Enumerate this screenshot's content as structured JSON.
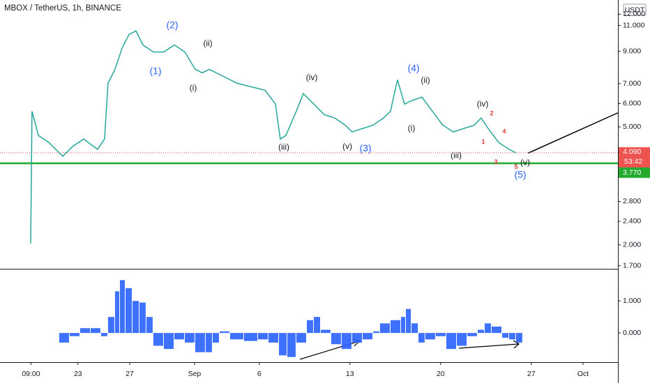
{
  "chart_data": {
    "type": "line",
    "title": "MBOX / TetherUS, 1h, BINANCE",
    "currency": "USDT",
    "log_scale": true,
    "color": "#26a69a",
    "x": [
      -12.65,
      -12.55,
      -12.06,
      -11.25,
      -10.18,
      -9.37,
      -8.56,
      -7.49,
      -6.95,
      -6.68,
      -6.14,
      -5.6,
      -5.06,
      -4.52,
      -3.98,
      -3.18,
      -2.37,
      -1.56,
      -0.75,
      0.05,
      0.59,
      1.13,
      2.21,
      3.28,
      4.36,
      5.44,
      6.25,
      6.62,
      7.05,
      7.86,
      8.4,
      9.21,
      10.02,
      10.82,
      11.63,
      12.17,
      12.98,
      13.79,
      14.59,
      15.13,
      15.67,
      16.21,
      16.75,
      17.56,
      18.36,
      19.17,
      19.98,
      20.79,
      21.59,
      22.13,
      22.67,
      23.48,
      24.29,
      24.82
    ],
    "values": [
      2.02,
      5.65,
      4.68,
      4.43,
      3.98,
      4.31,
      4.55,
      4.2,
      4.55,
      7.02,
      7.82,
      9.2,
      10.26,
      10.54,
      9.45,
      8.95,
      8.95,
      9.45,
      8.95,
      7.82,
      7.61,
      7.82,
      7.41,
      7.02,
      6.83,
      6.65,
      5.97,
      4.55,
      4.68,
      5.65,
      6.48,
      5.97,
      5.5,
      5.36,
      5.07,
      4.81,
      4.94,
      5.07,
      5.36,
      5.65,
      7.21,
      5.97,
      6.13,
      6.3,
      5.65,
      5.07,
      4.81,
      4.94,
      5.07,
      5.36,
      4.94,
      4.43,
      4.2,
      4.09
    ],
    "xlim": [
      -15.02,
      32.69
    ],
    "xticks": [
      {
        "value": -12.625,
        "label": "09:00"
      },
      {
        "value": -9,
        "label": "23"
      },
      {
        "value": -5,
        "label": "27"
      },
      {
        "value": 0,
        "label": "Sep"
      },
      {
        "value": 5,
        "label": "6"
      },
      {
        "value": 12,
        "label": "13"
      },
      {
        "value": 19,
        "label": "20"
      },
      {
        "value": 26,
        "label": "27"
      },
      {
        "value": 30,
        "label": "Oct"
      }
    ],
    "ylim": [
      1.67,
      13.4
    ],
    "yticks": [
      {
        "value": 12,
        "label": "12.000"
      },
      {
        "value": 11,
        "label": "11.000"
      },
      {
        "value": 9,
        "label": "9.000"
      },
      {
        "value": 7,
        "label": "7.000"
      },
      {
        "value": 6,
        "label": "6.000"
      },
      {
        "value": 5,
        "label": "5.000"
      },
      {
        "value": 2.8,
        "label": "2.800"
      },
      {
        "value": 2.4,
        "label": "2.400"
      },
      {
        "value": 2,
        "label": "2.000"
      },
      {
        "value": 1.7,
        "label": "1.700"
      }
    ],
    "last_price": {
      "value": 4.09,
      "label": "4.090"
    },
    "countdown": "53:42",
    "level": {
      "value": 3.77,
      "label": "3.770",
      "color": "#22ab2f"
    },
    "wave_labels": [
      {
        "text": "(2)",
        "color": "#2962ff"
      },
      {
        "text": "(1)",
        "color": "#2962ff"
      },
      {
        "text": "(ii)",
        "color": "#131722"
      },
      {
        "text": "(i)",
        "color": "#131722"
      },
      {
        "text": "(iv)",
        "color": "#131722"
      },
      {
        "text": "(iii)",
        "color": "#131722"
      },
      {
        "text": "(v)",
        "color": "#131722"
      },
      {
        "text": "(3)",
        "color": "#2962ff"
      },
      {
        "text": "(4)",
        "color": "#2962ff"
      },
      {
        "text": "(ii)",
        "color": "#131722"
      },
      {
        "text": "(i)",
        "color": "#131722"
      },
      {
        "text": "(iv)",
        "color": "#131722"
      },
      {
        "text": "(iii)",
        "color": "#131722"
      },
      {
        "text": "(v)",
        "color": "#131722"
      },
      {
        "text": "(5)",
        "color": "#2962ff"
      },
      {
        "text": "2",
        "color": "#e53935"
      },
      {
        "text": "4",
        "color": "#e53935"
      },
      {
        "text": "1",
        "color": "#e53935"
      },
      {
        "text": "3",
        "color": "#e53935"
      },
      {
        "text": "5",
        "color": "#e53935"
      }
    ],
    "oscillator": {
      "type": "histogram",
      "color": "#2962ff",
      "x": [
        -10.45,
        -9.64,
        -8.83,
        -8.02,
        -7.22,
        -6.68,
        -6.14,
        -5.76,
        -5.33,
        -4.79,
        -4.25,
        -3.72,
        -3.18,
        -2.37,
        -1.56,
        -0.75,
        0.05,
        0.86,
        1.4,
        1.94,
        2.75,
        3.82,
        4.9,
        5.71,
        6.52,
        7.16,
        7.86,
        8.67,
        9.21,
        9.75,
        10.55,
        11.36,
        12.17,
        12.98,
        13.79,
        14.32,
        15.13,
        15.94,
        16.32,
        16.75,
        17.29,
        17.82,
        18.63,
        19.44,
        20.25,
        21.06,
        21.86,
        22.4,
        22.94,
        23.75,
        24.29,
        24.82
      ],
      "values": [
        -0.3,
        -0.1,
        0.15,
        0.15,
        -0.1,
        0.5,
        1.3,
        1.65,
        1.4,
        1.0,
        0.95,
        0.5,
        -0.4,
        -0.5,
        -0.2,
        -0.3,
        -0.6,
        -0.6,
        -0.3,
        0.05,
        -0.2,
        -0.25,
        -0.2,
        -0.3,
        -0.7,
        -0.75,
        -0.3,
        0.4,
        0.5,
        0.1,
        -0.35,
        -0.5,
        -0.3,
        -0.2,
        0.05,
        0.3,
        0.4,
        0.5,
        0.75,
        0.3,
        -0.3,
        -0.2,
        -0.1,
        -0.5,
        -0.4,
        -0.1,
        0.1,
        0.3,
        0.2,
        -0.15,
        -0.2,
        -0.3
      ],
      "ylim": [
        -0.91,
        1.96
      ],
      "yticks": [
        {
          "value": 1,
          "label": "1.000"
        },
        {
          "value": 0,
          "label": "0.000"
        }
      ]
    }
  }
}
